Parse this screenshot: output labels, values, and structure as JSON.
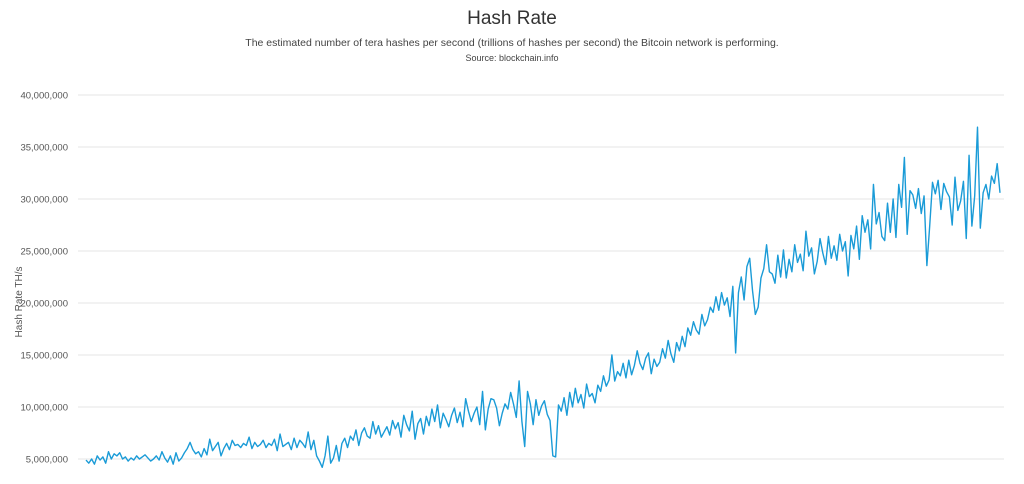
{
  "chart_data": {
    "type": "line",
    "title": "Hash Rate",
    "subtitle": "The estimated number of tera hashes per second (trillions of hashes per second) the Bitcoin network is performing.",
    "source": "Source: blockchain.info",
    "xlabel": "",
    "ylabel": "Hash Rate TH/s",
    "ylim": [
      4000000,
      40000000
    ],
    "yticks": [
      5000000,
      10000000,
      15000000,
      20000000,
      25000000,
      30000000,
      35000000,
      40000000
    ],
    "ytick_labels": [
      "5,000,000",
      "10,000,000",
      "15,000,000",
      "20,000,000",
      "25,000,000",
      "30,000,000",
      "35,000,000",
      "40,000,000"
    ],
    "grid": true,
    "legend": "none",
    "line_color": "#1a9bd7",
    "series": [
      {
        "values": [
          4.9,
          4.6,
          5.0,
          4.5,
          5.3,
          4.9,
          5.2,
          4.6,
          5.7,
          5.0,
          5.5,
          5.3,
          5.6,
          5.0,
          5.2,
          4.8,
          5.1,
          4.9,
          5.3,
          5.0,
          5.2,
          5.4,
          5.1,
          4.8,
          5.0,
          5.3,
          4.9,
          5.7,
          5.1,
          4.7,
          5.3,
          4.5,
          5.6,
          4.8,
          5.1,
          5.6,
          6.0,
          6.6,
          5.9,
          5.5,
          5.7,
          5.2,
          6.0,
          5.4,
          6.9,
          5.8,
          6.2,
          6.6,
          5.3,
          6.0,
          6.5,
          5.9,
          6.8,
          6.3,
          6.4,
          6.1,
          6.5,
          6.3,
          7.1,
          6.0,
          6.6,
          6.2,
          6.4,
          6.8,
          6.1,
          6.5,
          6.3,
          6.9,
          5.8,
          7.4,
          6.2,
          6.4,
          6.6,
          5.9,
          7.0,
          6.1,
          6.8,
          6.5,
          6.1,
          7.6,
          5.9,
          6.8,
          5.3,
          4.8,
          4.2,
          5.3,
          7.2,
          4.6,
          5.1,
          6.3,
          4.8,
          6.5,
          7.0,
          6.1,
          7.2,
          6.8,
          7.8,
          6.3,
          7.5,
          8.0,
          7.2,
          7.0,
          8.6,
          7.4,
          8.2,
          7.1,
          7.6,
          8.1,
          7.3,
          8.7,
          7.9,
          8.5,
          7.1,
          9.2,
          8.3,
          7.7,
          9.6,
          6.9,
          8.4,
          8.9,
          7.4,
          9.1,
          8.2,
          9.8,
          8.6,
          10.2,
          8.0,
          9.4,
          8.8,
          8.1,
          9.2,
          9.9,
          8.5,
          9.5,
          8.1,
          10.8,
          9.6,
          8.6,
          9.4,
          10.0,
          8.3,
          11.5,
          7.8,
          9.8,
          10.8,
          10.7,
          9.9,
          8.2,
          9.4,
          10.3,
          9.8,
          11.4,
          10.3,
          9.0,
          12.5,
          8.6,
          6.2,
          11.5,
          10.3,
          8.3,
          10.7,
          9.2,
          10.1,
          10.6,
          9.3,
          8.7,
          5.3,
          5.2,
          10.2,
          9.6,
          10.9,
          9.2,
          11.4,
          10.0,
          11.8,
          10.4,
          11.2,
          9.9,
          12.2,
          11.0,
          11.3,
          10.4,
          12.1,
          11.5,
          13.0,
          12.0,
          12.6,
          15.0,
          12.5,
          13.4,
          13.0,
          14.2,
          12.8,
          14.5,
          13.1,
          14.0,
          15.4,
          14.2,
          13.6,
          14.7,
          15.2,
          13.2,
          14.6,
          13.9,
          14.3,
          15.6,
          14.7,
          16.4,
          15.1,
          14.3,
          16.2,
          15.4,
          16.8,
          15.8,
          17.6,
          16.9,
          18.2,
          17.4,
          17.0,
          18.9,
          17.8,
          18.4,
          19.6,
          19.1,
          20.6,
          19.3,
          21.0,
          19.8,
          20.5,
          18.7,
          21.6,
          15.2,
          21.0,
          22.5,
          20.3,
          23.5,
          24.3,
          21.2,
          18.9,
          19.6,
          22.4,
          23.3,
          25.6,
          23.0,
          22.8,
          21.9,
          24.6,
          22.5,
          25.1,
          22.4,
          24.2,
          23.0,
          25.6,
          23.9,
          24.7,
          23.1,
          26.9,
          24.5,
          25.3,
          22.8,
          24.0,
          26.2,
          24.8,
          23.7,
          26.4,
          24.3,
          25.5,
          24.1,
          26.6,
          25.0,
          25.9,
          22.6,
          26.5,
          25.2,
          27.4,
          24.2,
          28.4,
          26.8,
          28.0,
          25.2,
          31.4,
          27.6,
          28.7,
          26.4,
          26.0,
          29.6,
          26.8,
          30.0,
          26.3,
          31.4,
          29.2,
          34.0,
          26.6,
          30.8,
          30.4,
          29.1,
          31.0,
          28.6,
          30.3,
          23.6,
          27.4,
          31.6,
          30.5,
          31.8,
          29.0,
          31.5,
          30.7,
          30.2,
          27.5,
          32.1,
          28.9,
          29.8,
          31.7,
          26.2,
          34.2,
          27.4,
          30.3,
          36.9,
          27.2,
          30.6,
          31.4,
          30.0,
          32.2,
          31.5,
          33.4,
          30.6
        ]
      }
    ]
  }
}
